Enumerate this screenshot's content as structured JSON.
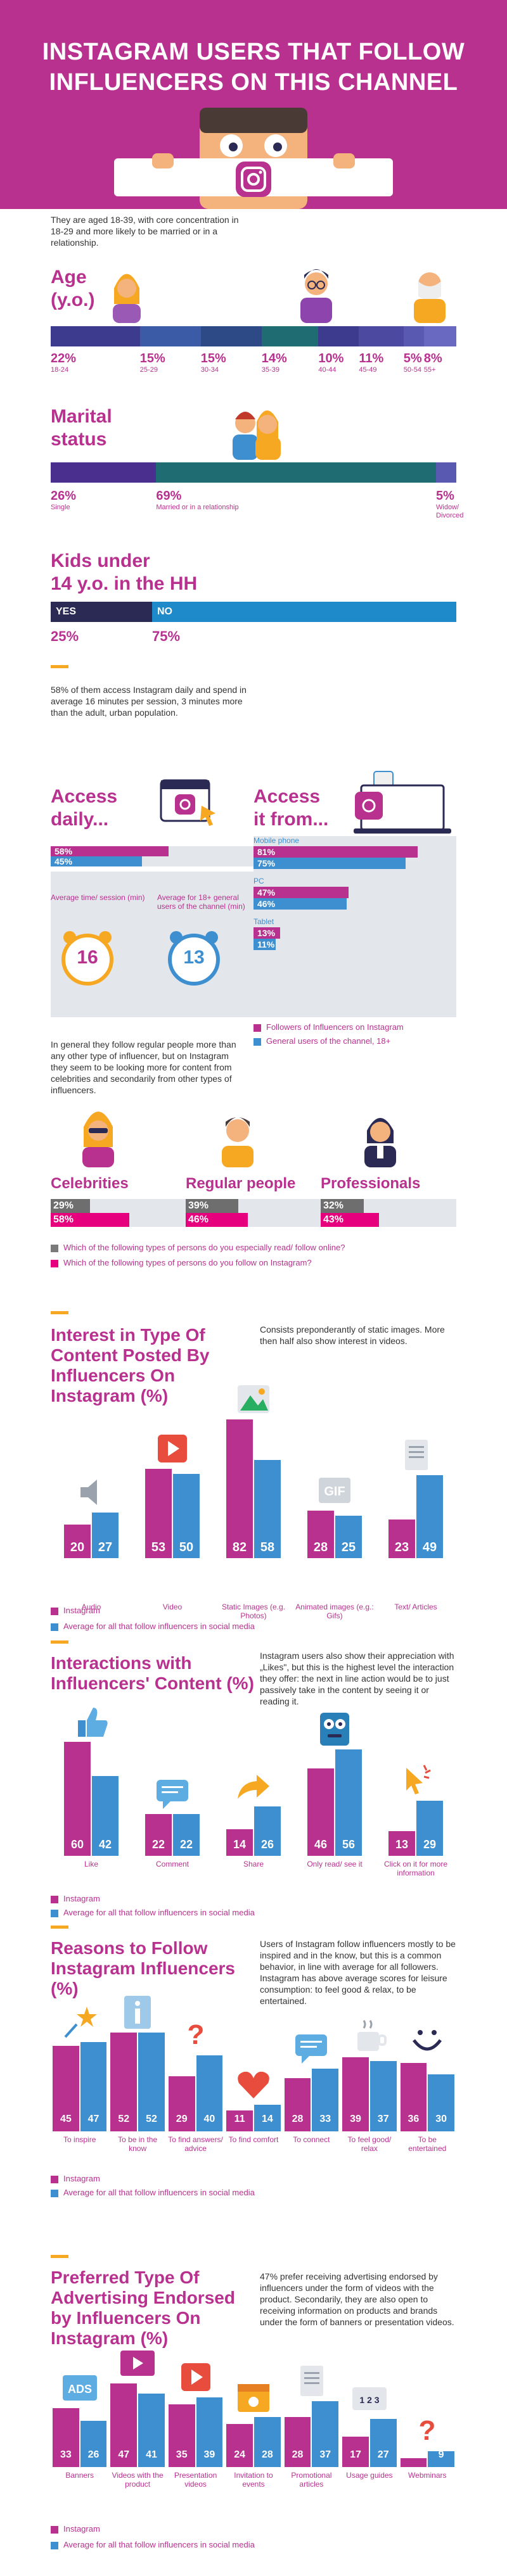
{
  "colors": {
    "pink": "#b8318f",
    "blue": "#3d8fd0",
    "orange": "#f7a823",
    "navy": "#2b2a54",
    "gray": "#e3e6ea"
  },
  "header": {
    "title_line1": "INSTAGRAM USERS THAT FOLLOW",
    "title_line2": "INFLUENCERS ON THIS CHANNEL"
  },
  "intro": {
    "text": "They are aged 18-39, with core concentration in 18-29 and more likely to be married or in a relationship."
  },
  "age": {
    "title_line1": "Age",
    "title_line2": "(y.o.)",
    "items": [
      {
        "pct": "22%",
        "label": "18-24",
        "value": 22,
        "color": "#3c3b8d"
      },
      {
        "pct": "15%",
        "label": "25-29",
        "value": 15,
        "color": "#3b5ba6"
      },
      {
        "pct": "15%",
        "label": "30-34",
        "value": 15,
        "color": "#2e4a86"
      },
      {
        "pct": "14%",
        "label": "35-39",
        "value": 14,
        "color": "#1f6c72"
      },
      {
        "pct": "10%",
        "label": "40-44",
        "value": 10,
        "color": "#3c3b8d"
      },
      {
        "pct": "11%",
        "label": "45-49",
        "value": 11,
        "color": "#4b4aa0"
      },
      {
        "pct": "5%",
        "label": "50-54",
        "value": 5,
        "color": "#5a59b1"
      },
      {
        "pct": "8%",
        "label": "55+",
        "value": 8,
        "color": "#6a69c1"
      }
    ]
  },
  "marital": {
    "title_line1": "Marital",
    "title_line2": "status",
    "items": [
      {
        "pct": "26%",
        "label": "Single",
        "value": 26,
        "color": "#4b2f8f"
      },
      {
        "pct": "69%",
        "label": "Married or in a relationship",
        "value": 69,
        "color": "#1f6c72"
      },
      {
        "pct": "5%",
        "label": "Widow/ Divorced",
        "value": 5,
        "color": "#5a59b1"
      }
    ]
  },
  "kids": {
    "title_line1": "Kids under",
    "title_line2": "14 y.o. in the HH",
    "yes": "YES",
    "no": "NO",
    "yes_pct": "25%",
    "no_pct": "75%",
    "yes_value": 25,
    "no_value": 75
  },
  "daily_text": "58% of them access Instagram daily and spend in average 16 minutes per session, 3 minutes more than the adult, urban population.",
  "access_daily": {
    "title_line1": "Access",
    "title_line2": "daily...",
    "v1": "58%",
    "v2": "45%",
    "n1": 58,
    "n2": 45,
    "time1_label": "Average time/ session (min)",
    "time1": "16",
    "time2_label": "Average for 18+ general users of the channel (min)",
    "time2": "13"
  },
  "access_from": {
    "title_line1": "Access",
    "title_line2": "it from...",
    "groups": [
      {
        "label": "Mobile phone",
        "v1": "81%",
        "v2": "75%",
        "n1": 81,
        "n2": 75
      },
      {
        "label": "PC",
        "v1": "47%",
        "v2": "46%",
        "n1": 47,
        "n2": 46
      },
      {
        "label": "Tablet",
        "v1": "13%",
        "v2": "11%",
        "n1": 13,
        "n2": 11
      }
    ],
    "legend1": "Followers of Influencers on Instagram",
    "legend2": "General users of the channel, 18+"
  },
  "follow_text": "In general they follow regular people more than any other type of influencer, but on Instagram they seem to be looking more for content from celebrities and secondarily from other types of influencers.",
  "persons": {
    "items": [
      {
        "label": "Celebrities",
        "v1": "29%",
        "v2": "58%",
        "n1": 29,
        "n2": 58
      },
      {
        "label": "Regular people",
        "v1": "39%",
        "v2": "46%",
        "n1": 39,
        "n2": 46
      },
      {
        "label": "Professionals",
        "v1": "32%",
        "v2": "43%",
        "n1": 32,
        "n2": 43
      }
    ],
    "legend1": "Which of the following types of persons do you especially read/ follow online?",
    "legend2": "Which of the following types of persons do you follow on Instagram?"
  },
  "interest": {
    "title_line1": "Interest in Type Of",
    "title_line2": "Content Posted By",
    "title_line3": "Influencers On",
    "title_line4": "Instagram (%)",
    "text": "Consists preponderantly of static images. More then half also show interest in videos.",
    "items": [
      {
        "label": "Audio",
        "v1": 20,
        "v2": 27,
        "icon": "speaker-icon"
      },
      {
        "label": "Video",
        "v1": 53,
        "v2": 50,
        "icon": "play-icon"
      },
      {
        "label": "Static Images (e.g. Photos)",
        "v1": 82,
        "v2": 58,
        "icon": "image-icon"
      },
      {
        "label": "Animated images (e.g.: Gifs)",
        "v1": 28,
        "v2": 25,
        "icon": "gif-icon"
      },
      {
        "label": "Text/ Articles",
        "v1": 23,
        "v2": 49,
        "icon": "document-icon"
      }
    ],
    "legend1": "Instagram",
    "legend2": "Average for all that follow influencers in social media"
  },
  "interactions": {
    "title_line1": "Interactions with",
    "title_line2": "Influencers' Content (%)",
    "text": "Instagram users also show their appreciation with „Likes\", but this is the highest level the interaction they offer: the next in line action would be to just passively take in the content by seeing it or reading it.",
    "items": [
      {
        "label": "Like",
        "v1": 60,
        "v2": 42,
        "icon": "thumbs-up-icon"
      },
      {
        "label": "Comment",
        "v1": 22,
        "v2": 22,
        "icon": "chat-icon"
      },
      {
        "label": "Share",
        "v1": 14,
        "v2": 26,
        "icon": "share-icon"
      },
      {
        "label": "Only read/ see it",
        "v1": 46,
        "v2": 56,
        "icon": "eyes-icon"
      },
      {
        "label": "Click on it for more information",
        "v1": 13,
        "v2": 29,
        "icon": "cursor-icon"
      }
    ],
    "legend1": "Instagram",
    "legend2": "Average for all that follow influencers in social media"
  },
  "reasons": {
    "title_line1": "Reasons to Follow",
    "title_line2": "Instagram Influencers",
    "title_line3": "(%)",
    "text": "Users of Instagram follow influencers mostly to be inspired and in the know, but this is a common behavior, in line with average for all followers. Instagram has above average scores for leisure consumption: to feel good & relax, to be entertained.",
    "items": [
      {
        "label": "To inspire",
        "v1": 45,
        "v2": 47,
        "icon": "stars-icon"
      },
      {
        "label": "To be in the know",
        "v1": 52,
        "v2": 52,
        "icon": "info-icon"
      },
      {
        "label": "To find answers/ advice",
        "v1": 29,
        "v2": 40,
        "icon": "question-icon"
      },
      {
        "label": "To find comfort",
        "v1": 11,
        "v2": 14,
        "icon": "heart-icon"
      },
      {
        "label": "To connect",
        "v1": 28,
        "v2": 33,
        "icon": "chat-icon"
      },
      {
        "label": "To feel good/ relax",
        "v1": 39,
        "v2": 37,
        "icon": "coffee-icon"
      },
      {
        "label": "To be entertained",
        "v1": 36,
        "v2": 30,
        "icon": "smile-icon"
      }
    ],
    "legend1": "Instagram",
    "legend2": "Average for all that follow influencers in social media"
  },
  "advertising": {
    "title_line1": "Preferred Type Of",
    "title_line2": "Advertising Endorsed",
    "title_line3": "by Influencers On",
    "title_line4": "Instagram (%)",
    "text": "47% prefer receiving advertising endorsed by influencers under the form of videos with the product. Secondarily, they are also open to receiving information on products and brands under the form of banners or presentation videos.",
    "items": [
      {
        "label": "Banners",
        "v1": 33,
        "v2": 26,
        "icon": "ads-icon"
      },
      {
        "label": "Videos with the product",
        "v1": 47,
        "v2": 41,
        "icon": "video-icon"
      },
      {
        "label": "Presentation videos",
        "v1": 35,
        "v2": 39,
        "icon": "play-icon"
      },
      {
        "label": "Invitation to events",
        "v1": 24,
        "v2": 28,
        "icon": "calendar-icon"
      },
      {
        "label": "Promotional articles",
        "v1": 28,
        "v2": 37,
        "icon": "document-icon"
      },
      {
        "label": "Usage guides",
        "v1": 17,
        "v2": 27,
        "icon": "guide-icon"
      },
      {
        "label": "Webminars",
        "v1": 5,
        "v2": 9,
        "icon": "question-icon"
      }
    ],
    "legend1": "Instagram",
    "legend2": "Average for all that follow influencers in social media"
  },
  "chart_data": [
    {
      "type": "bar",
      "title": "Age (y.o.)",
      "categories": [
        "18-24",
        "25-29",
        "30-34",
        "35-39",
        "40-44",
        "45-49",
        "50-54",
        "55+"
      ],
      "values": [
        22,
        15,
        15,
        14,
        10,
        11,
        5,
        8
      ]
    },
    {
      "type": "bar",
      "title": "Marital status",
      "categories": [
        "Single",
        "Married or in a relationship",
        "Widow/ Divorced"
      ],
      "values": [
        26,
        69,
        5
      ]
    },
    {
      "type": "bar",
      "title": "Kids under 14 y.o. in the HH",
      "categories": [
        "YES",
        "NO"
      ],
      "values": [
        25,
        75
      ]
    },
    {
      "type": "bar",
      "title": "Interest in Type Of Content Posted By Influencers On Instagram (%)",
      "categories": [
        "Audio",
        "Video",
        "Static Images (e.g. Photos)",
        "Animated images (e.g.: Gifs)",
        "Text/ Articles"
      ],
      "series": [
        {
          "name": "Instagram",
          "values": [
            20,
            53,
            82,
            28,
            23
          ]
        },
        {
          "name": "Average for all that follow influencers in social media",
          "values": [
            27,
            50,
            58,
            25,
            49
          ]
        }
      ]
    },
    {
      "type": "bar",
      "title": "Interactions with Influencers' Content (%)",
      "categories": [
        "Like",
        "Comment",
        "Share",
        "Only read/ see it",
        "Click on it for more information"
      ],
      "series": [
        {
          "name": "Instagram",
          "values": [
            60,
            22,
            14,
            46,
            13
          ]
        },
        {
          "name": "Average for all that follow influencers in social media",
          "values": [
            42,
            22,
            26,
            56,
            29
          ]
        }
      ]
    },
    {
      "type": "bar",
      "title": "Reasons to Follow Instagram Influencers (%)",
      "categories": [
        "To inspire",
        "To be in the know",
        "To find answers/ advice",
        "To find comfort",
        "To connect",
        "To feel good/ relax",
        "To be entertained"
      ],
      "series": [
        {
          "name": "Instagram",
          "values": [
            45,
            52,
            29,
            11,
            28,
            39,
            36
          ]
        },
        {
          "name": "Average for all that follow influencers in social media",
          "values": [
            47,
            52,
            40,
            14,
            33,
            37,
            30
          ]
        }
      ]
    },
    {
      "type": "bar",
      "title": "Preferred Type Of Advertising Endorsed by Influencers On Instagram (%)",
      "categories": [
        "Banners",
        "Videos with the product",
        "Presentation videos",
        "Invitation to events",
        "Promotional articles",
        "Usage guides",
        "Webminars"
      ],
      "series": [
        {
          "name": "Instagram",
          "values": [
            33,
            47,
            35,
            24,
            28,
            17,
            5
          ]
        },
        {
          "name": "Average for all that follow influencers in social media",
          "values": [
            26,
            41,
            39,
            28,
            37,
            27,
            9
          ]
        }
      ]
    }
  ]
}
